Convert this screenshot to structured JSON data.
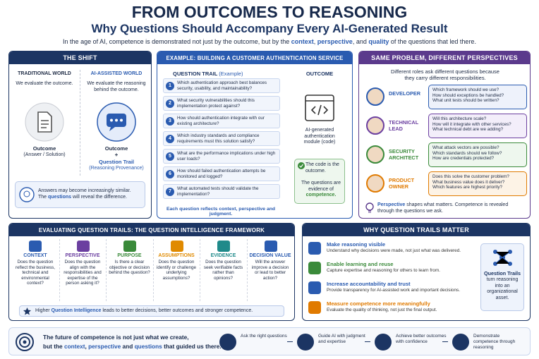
{
  "header": {
    "title": "FROM OUTCOMES TO REASONING",
    "subtitle": "Why Questions Should Accompany Every AI-Generated Result",
    "intro": [
      {
        "text": "In the age of AI, competence is demonstrated not just by the outcome, but by the "
      },
      {
        "text": "context",
        "highlight": true
      },
      {
        "text": ", "
      },
      {
        "text": "perspective",
        "highlight": true
      },
      {
        "text": ", and "
      },
      {
        "text": "quality",
        "highlight": true
      },
      {
        "text": " of the questions that led there."
      }
    ]
  },
  "shift": {
    "title": "THE SHIFT",
    "traditional": {
      "heading": "TRADITIONAL WORLD",
      "text": "We evaluate the outcome.",
      "label": "Outcome",
      "sub": "(Answer / Solution)"
    },
    "ai": {
      "heading": "AI-ASSISTED WORLD",
      "text": "We evaluate the reasoning behind the outcome.",
      "label": "Outcome",
      "plus": "+",
      "trail": "Question Trail",
      "sub": "(Reasoning Provenance)"
    },
    "note": [
      {
        "text": "Answers may become increasingly similar."
      },
      {
        "text": "The "
      },
      {
        "text": "questions",
        "highlight": true
      },
      {
        "text": " will reveal the difference."
      }
    ]
  },
  "example": {
    "title": "EXAMPLE: BUILDING A CUSTOMER AUTHENTICATION SERVICE",
    "trail_heading": "QUESTION TRAIL",
    "trail_tag": "(Example)",
    "questions": [
      {
        "n": 1,
        "text": "Which authentication approach best balances security, usability, and maintainability?"
      },
      {
        "n": 2,
        "text": "What security vulnerabilities should this implementation protect against?"
      },
      {
        "n": 3,
        "text": "How should authentication integrate with our existing architecture?"
      },
      {
        "n": 4,
        "text": "Which industry standards and compliance requirements must this solution satisfy?"
      },
      {
        "n": 5,
        "text": "What are the performance implications under high user loads?"
      },
      {
        "n": 6,
        "text": "How should failed authentication attempts be monitored and logged?"
      },
      {
        "n": 7,
        "text": "What automated tests should validate the implementation?"
      }
    ],
    "outcome_heading": "OUTCOME",
    "outcome_text": "AI-generated authentication module (code)",
    "note": [
      "The code is the outcome.",
      "The questions are evidence of",
      "competence."
    ],
    "footer": "Each question reflects context, perspective and judgment."
  },
  "perspectives": {
    "title": "SAME PROBLEM, DIFFERENT PERSPECTIVES",
    "intro": "Different roles ask different questions because they carry different responsibilities.",
    "roles": [
      {
        "name": "DEVELOPER",
        "color": "#2a5bb0",
        "bubble": "#eef2fb",
        "questions": [
          "Which framework should we use?",
          "How should exceptions be handled?",
          "What unit tests should be written?"
        ]
      },
      {
        "name": "TECHNICAL LEAD",
        "color": "#6b3fa0",
        "bubble": "#f3eefa",
        "questions": [
          "Will this architecture scale?",
          "How will it integrate with other services?",
          "What technical debt are we adding?"
        ]
      },
      {
        "name": "SECURITY ARCHITECT",
        "color": "#3a8a3a",
        "bubble": "#eef7ee",
        "questions": [
          "What attack vectors are possible?",
          "Which standards should we follow?",
          "How are credentials protected?"
        ]
      },
      {
        "name": "PRODUCT OWNER",
        "color": "#e07a00",
        "bubble": "#fdf3e6",
        "questions": [
          "Does this solve the customer problem?",
          "What business value does it deliver?",
          "Which features are highest priority?"
        ]
      }
    ],
    "footer": [
      {
        "text": "Perspective",
        "highlight": true
      },
      {
        "text": " shapes what matters. Competence is revealed through the questions we ask."
      }
    ]
  },
  "framework": {
    "title": "EVALUATING QUESTION TRAILS: THE QUESTION INTELLIGENCE FRAMEWORK",
    "items": [
      {
        "name": "CONTEXT",
        "color": "#2a5bb0",
        "text": "Does the question reflect the business, technical and environmental context?"
      },
      {
        "name": "PERSPECTIVE",
        "color": "#6b3fa0",
        "text": "Does the question align with the responsibilities and expertise of the person asking it?"
      },
      {
        "name": "PURPOSE",
        "color": "#3a8a3a",
        "text": "Is there a clear objective or decision behind the question?"
      },
      {
        "name": "ASSUMPTIONS",
        "color": "#e08a00",
        "text": "Does the question identify or challenge underlying assumptions?"
      },
      {
        "name": "EVIDENCE",
        "color": "#1f8a8a",
        "text": "Does the question seek verifiable facts rather than opinions?"
      },
      {
        "name": "DECISION VALUE",
        "color": "#2a5bb0",
        "text": "Will the answer improve a decision or lead to better action?"
      }
    ],
    "footer": [
      {
        "text": "Higher "
      },
      {
        "text": "Question Intelligence",
        "highlight": true
      },
      {
        "text": " leads to better decisions, better outcomes and stronger competence."
      }
    ]
  },
  "matters": {
    "title": "WHY QUESTION TRAILS MATTER",
    "items": [
      {
        "title": "Make reasoning visible",
        "color": "#2a5bb0",
        "text": "Understand why decisions were made, not just what was delivered."
      },
      {
        "title": "Enable learning and reuse",
        "color": "#3a8a3a",
        "text": "Capture expertise and reasoning for others to learn from."
      },
      {
        "title": "Increase accountability and trust",
        "color": "#2a5bb0",
        "text": "Provide transparency for AI-assisted work and important decisions."
      },
      {
        "title": "Measure competence more meaningfully",
        "color": "#e07a00",
        "text": "Evaluate the quality of thinking, not just the final output."
      }
    ],
    "side_title": "Question Trails",
    "side_text": "turn reasoning into an organizational asset."
  },
  "footer": {
    "line1": "The future of competence is not just what we create,",
    "line2": [
      {
        "text": "but the "
      },
      {
        "text": "context",
        "highlight": true
      },
      {
        "text": ", "
      },
      {
        "text": "perspective",
        "highlight": true
      },
      {
        "text": " and "
      },
      {
        "text": "questions",
        "highlight": true
      },
      {
        "text": " that guided us there."
      }
    ],
    "steps": [
      "Ask the right questions",
      "Guide AI with judgment and expertise",
      "Achieve better outcomes with confidence",
      "Demonstrate competence through reasoning"
    ]
  }
}
